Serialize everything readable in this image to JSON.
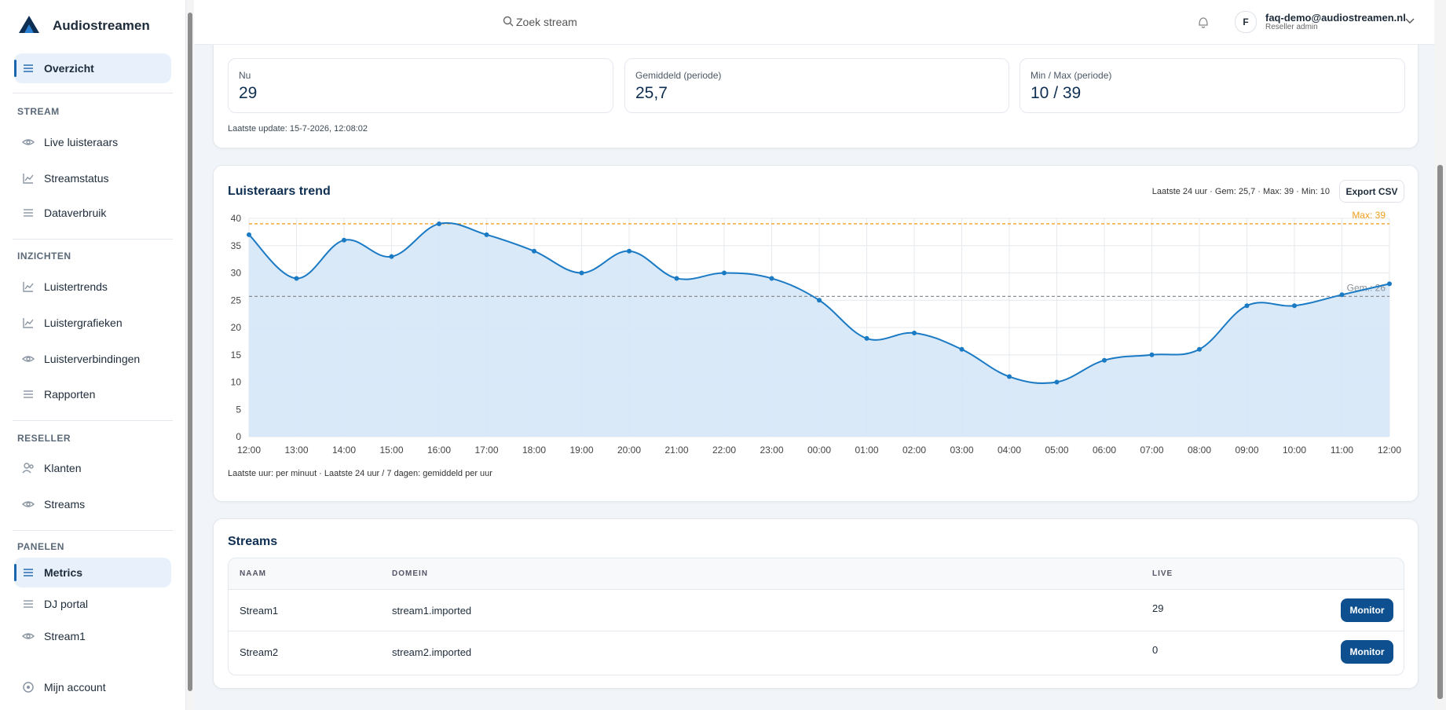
{
  "sidebar": {
    "brand": "Audiostreamen",
    "sections": [
      {
        "items": [
          {
            "label": "Overzicht",
            "icon": "list",
            "active": true
          }
        ]
      },
      {
        "heading": "STREAM",
        "items": [
          {
            "label": "Live luisteraars",
            "icon": "eye"
          },
          {
            "label": "Streamstatus",
            "icon": "chart"
          },
          {
            "label": "Dataverbruik",
            "icon": "list"
          }
        ]
      },
      {
        "heading": "INZICHTEN",
        "items": [
          {
            "label": "Luistertrends",
            "icon": "chart"
          },
          {
            "label": "Luistergrafieken",
            "icon": "chart"
          },
          {
            "label": "Luisterverbindingen",
            "icon": "eye"
          },
          {
            "label": "Rapporten",
            "icon": "list"
          }
        ]
      },
      {
        "heading": "RESELLER",
        "items": [
          {
            "label": "Klanten",
            "icon": "users"
          },
          {
            "label": "Streams",
            "icon": "eye"
          }
        ]
      },
      {
        "heading": "PANELEN",
        "items": [
          {
            "label": "Metrics",
            "icon": "list",
            "active": true
          },
          {
            "label": "DJ portal",
            "icon": "list"
          },
          {
            "label": "Stream1",
            "icon": "eye"
          }
        ]
      }
    ],
    "footer": "Mijn account"
  },
  "header": {
    "search": "Zoek stream",
    "avatar": "F",
    "email": "faq-demo@audiostreamen.nl",
    "role": "Reseller admin"
  },
  "stats": [
    {
      "label": "Nu",
      "value": "29"
    },
    {
      "label": "Gemiddeld (periode)",
      "value": "25,7"
    },
    {
      "label": "Min / Max (periode)",
      "value": "10 / 39"
    }
  ],
  "last_update": "Laatste update: 15-7-2026, 12:08:02",
  "chart_data": {
    "type": "area",
    "title": "Luisteraars trend",
    "subtitle": "Laatste 24 uur · Gem: 25,7 · Max: 39 · Min: 10",
    "button": "Export CSV",
    "footnote": "Laatste uur: per minuut · Laatste 24 uur / 7 dagen: gemiddeld per uur",
    "categories": [
      "12:00",
      "13:00",
      "14:00",
      "15:00",
      "16:00",
      "17:00",
      "18:00",
      "19:00",
      "20:00",
      "21:00",
      "22:00",
      "23:00",
      "00:00",
      "01:00",
      "02:00",
      "03:00",
      "04:00",
      "05:00",
      "06:00",
      "07:00",
      "08:00",
      "09:00",
      "10:00",
      "11:00",
      "12:00"
    ],
    "values": [
      37,
      29,
      36,
      33,
      39,
      37,
      34,
      30,
      34,
      29,
      30,
      29,
      25,
      18,
      19,
      16,
      11,
      10,
      14,
      15,
      16,
      24,
      24,
      26,
      28
    ],
    "color": "#1a7ac4",
    "fill": "#d6e7f7",
    "ylim": [
      0,
      40
    ],
    "yticks": [
      0,
      5,
      10,
      15,
      20,
      25,
      30,
      35,
      40
    ],
    "grid": true,
    "reference_lines": [
      {
        "value": 39,
        "label": "Max: 39",
        "color": "#f0a020"
      },
      {
        "value": 25.7,
        "label": "Gem.: 26",
        "color": "#8a8f96"
      }
    ]
  },
  "streams": {
    "title": "Streams",
    "columns": [
      "NAAM",
      "DOMEIN",
      "LIVE"
    ],
    "rows": [
      [
        "Stream1",
        "stream1.imported",
        "29",
        "Monitor"
      ],
      [
        "Stream2",
        "stream2.imported",
        "0",
        "Monitor"
      ]
    ]
  }
}
